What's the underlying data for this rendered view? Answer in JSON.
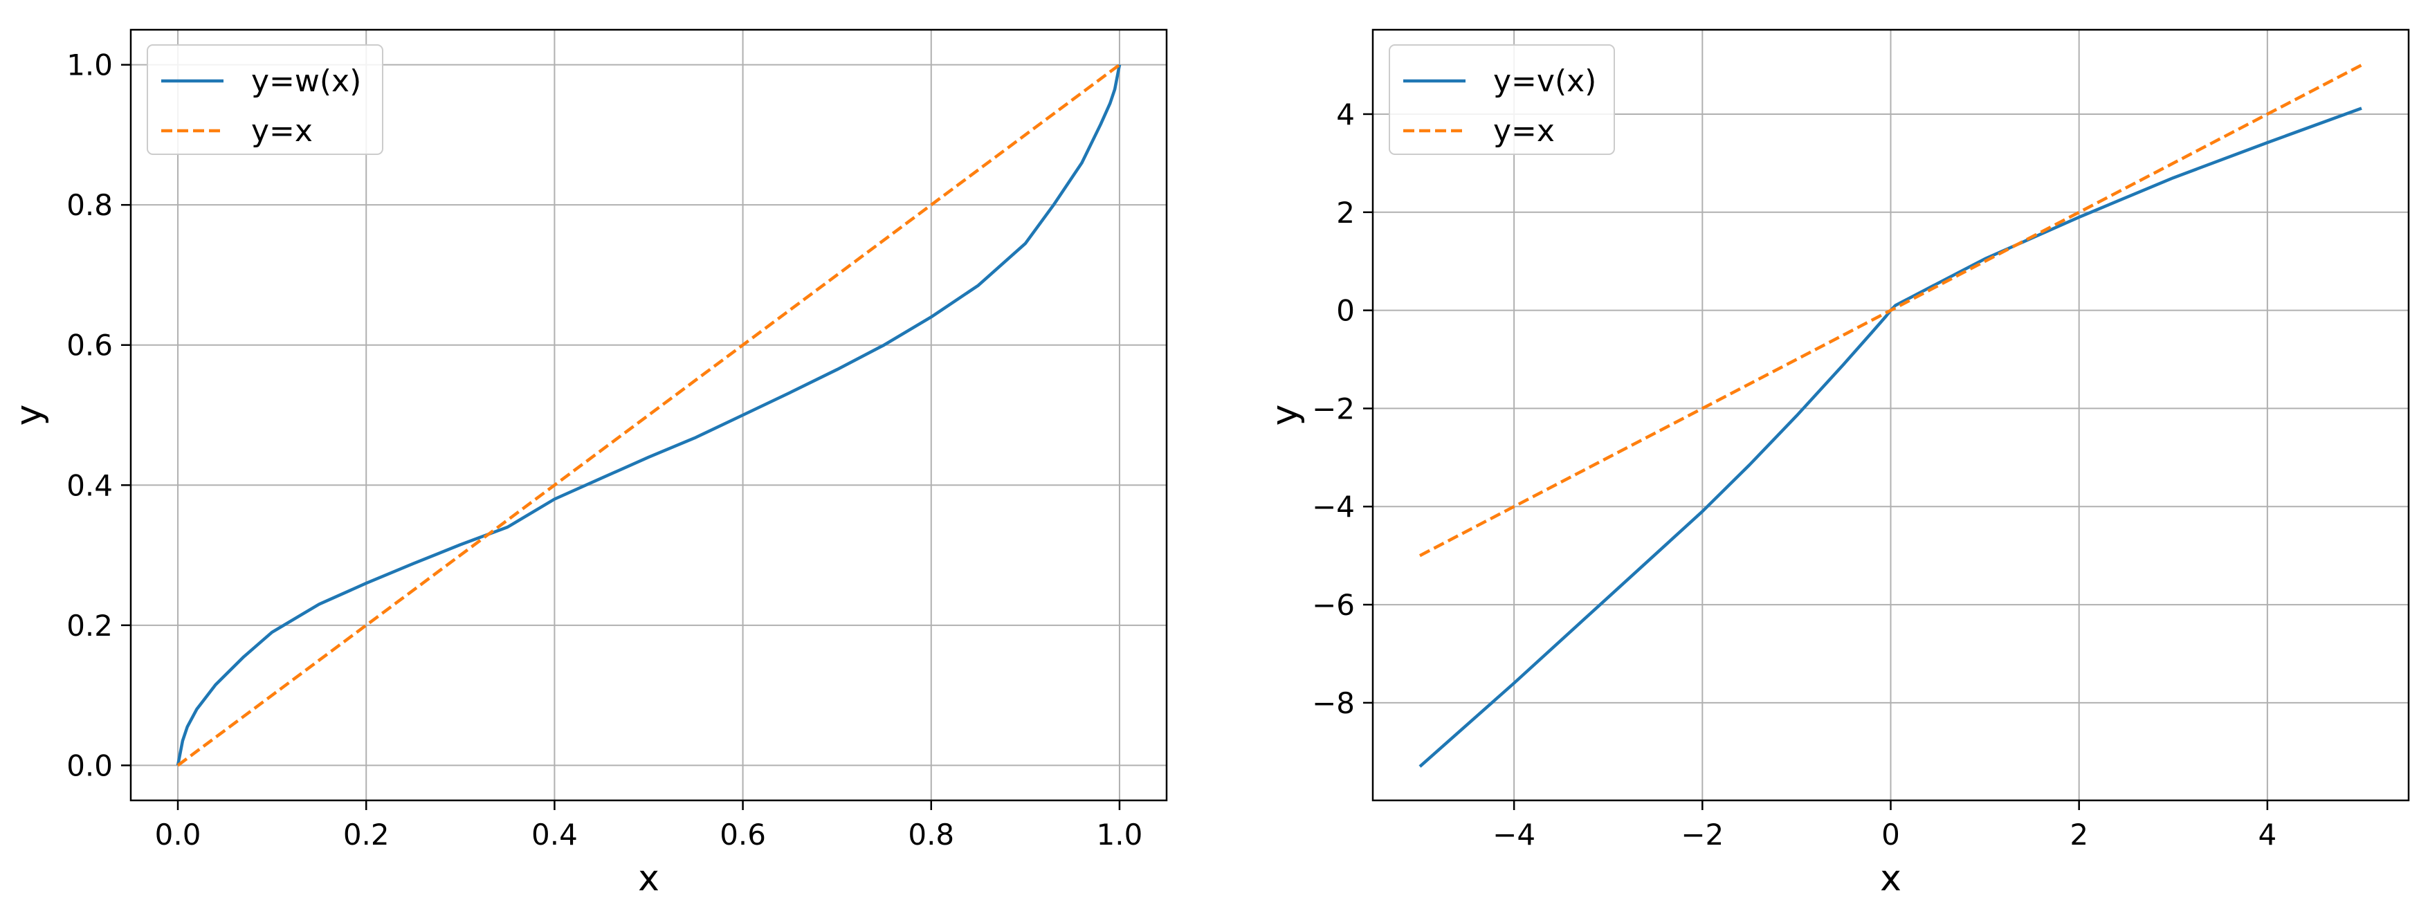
{
  "colors": {
    "series1": "#1f77b4",
    "series2": "#ff7f0e",
    "grid": "#b0b0b0",
    "axis": "#000000"
  },
  "chart_data": [
    {
      "type": "line",
      "xlabel": "x",
      "ylabel": "y",
      "xlim": [
        -0.05,
        1.05
      ],
      "ylim": [
        -0.05,
        1.05
      ],
      "xticks": [
        0.0,
        0.2,
        0.4,
        0.6,
        0.8,
        1.0
      ],
      "xtick_labels": [
        "0.0",
        "0.2",
        "0.4",
        "0.6",
        "0.8",
        "1.0"
      ],
      "yticks": [
        0.0,
        0.2,
        0.4,
        0.6,
        0.8,
        1.0
      ],
      "ytick_labels": [
        "0.0",
        "0.2",
        "0.4",
        "0.6",
        "0.8",
        "1.0"
      ],
      "grid": true,
      "legend": "upper-left",
      "series": [
        {
          "name": "y=w(x)",
          "style": "solid",
          "color": "#1f77b4",
          "x": [
            0.0,
            0.005,
            0.01,
            0.02,
            0.04,
            0.07,
            0.1,
            0.15,
            0.2,
            0.25,
            0.3,
            0.35,
            0.4,
            0.45,
            0.5,
            0.55,
            0.6,
            0.65,
            0.7,
            0.75,
            0.8,
            0.85,
            0.9,
            0.93,
            0.96,
            0.98,
            0.99,
            0.995,
            1.0
          ],
          "y": [
            0.0,
            0.035,
            0.055,
            0.08,
            0.115,
            0.155,
            0.19,
            0.23,
            0.26,
            0.288,
            0.315,
            0.34,
            0.38,
            0.41,
            0.44,
            0.468,
            0.5,
            0.532,
            0.565,
            0.6,
            0.64,
            0.685,
            0.745,
            0.8,
            0.86,
            0.915,
            0.945,
            0.965,
            1.0
          ]
        },
        {
          "name": "y=x",
          "style": "dashed",
          "color": "#ff7f0e",
          "x": [
            0.0,
            1.0
          ],
          "y": [
            0.0,
            1.0
          ]
        }
      ]
    },
    {
      "type": "line",
      "xlabel": "x",
      "ylabel": "y",
      "xlim": [
        -5.5,
        5.5
      ],
      "ylim": [
        -9.99,
        5.72
      ],
      "xticks": [
        -4,
        -2,
        0,
        2,
        4
      ],
      "xtick_labels": [
        "−4",
        "−2",
        "0",
        "2",
        "4"
      ],
      "yticks": [
        -8,
        -6,
        -4,
        -2,
        0,
        2,
        4
      ],
      "ytick_labels": [
        "−8",
        "−6",
        "−4",
        "−2",
        "0",
        "2",
        "4"
      ],
      "grid": true,
      "legend": "upper-left",
      "series": [
        {
          "name": "y=v(x)",
          "style": "solid",
          "color": "#1f77b4",
          "x": [
            -5.0,
            -4.0,
            -3.0,
            -2.0,
            -1.5,
            -1.0,
            -0.5,
            -0.2,
            -0.05,
            0.0,
            0.05,
            0.2,
            0.5,
            1.0,
            2.0,
            3.0,
            4.0,
            5.0
          ],
          "y": [
            -9.3,
            -7.6,
            -5.85,
            -4.1,
            -3.15,
            -2.15,
            -1.1,
            -0.45,
            -0.12,
            0.0,
            0.1,
            0.25,
            0.55,
            1.05,
            1.9,
            2.7,
            3.42,
            4.12
          ]
        },
        {
          "name": "y=x",
          "style": "dashed",
          "color": "#ff7f0e",
          "x": [
            -5.0,
            5.0
          ],
          "y": [
            -5.0,
            5.0
          ]
        }
      ]
    }
  ]
}
